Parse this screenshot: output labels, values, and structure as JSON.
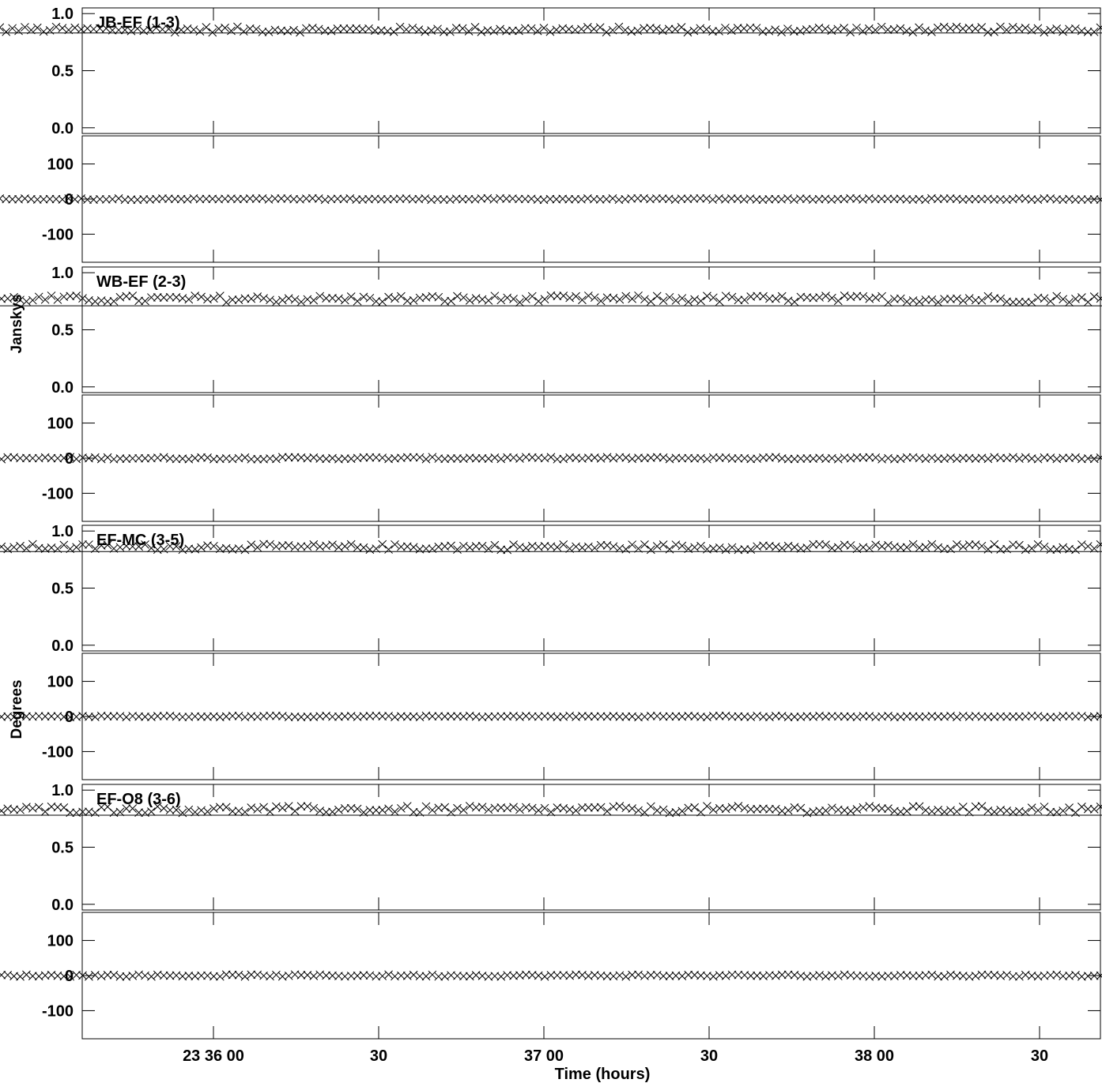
{
  "chart_data": {
    "type": "scatter",
    "xlabel": "Time (hours)",
    "ylabel_amplitude": "Janskys",
    "ylabel_phase": "Degrees",
    "x_unit": "seconds since 23:35:00",
    "xlim": [
      -83,
      1745
    ],
    "x_ticks": [
      {
        "label": "23 36 00",
        "value": 60
      },
      {
        "label": "30",
        "value": 90
      },
      {
        "label": "37 00",
        "value": 120
      },
      {
        "label": "30",
        "value": 150
      },
      {
        "label": "38 00",
        "value": 180
      },
      {
        "label": "30",
        "value": 210
      }
    ],
    "amp_ylim": [
      -0.05,
      1.05
    ],
    "amp_ticks": [
      "1.0",
      "0.5",
      "0.0"
    ],
    "phase_ylim": [
      -180,
      180
    ],
    "phase_ticks": [
      "100",
      "0",
      "-100"
    ],
    "baselines": [
      {
        "name": "JB-EF (1-3)",
        "x_start": 11.0,
        "x_end": 229.0,
        "amp_mean": 0.86,
        "amp_model": 0.83,
        "amp_scatter": 0.025,
        "phase_mean": 0,
        "phase_scatter": 2.0
      },
      {
        "name": "WB-EF (2-3)",
        "x_start": 4.5,
        "x_end": 229.0,
        "amp_mean": 0.77,
        "amp_model": 0.71,
        "amp_scatter": 0.03,
        "phase_mean": 0,
        "phase_scatter": 3.0
      },
      {
        "name": "EF-MC (3-5)",
        "x_start": 4.5,
        "x_end": 229.0,
        "amp_mean": 0.86,
        "amp_model": 0.82,
        "amp_scatter": 0.025,
        "phase_mean": 0,
        "phase_scatter": 2.0
      },
      {
        "name": "EF-O8 (3-6)",
        "x_start": 4.5,
        "x_end": 229.0,
        "amp_mean": 0.83,
        "amp_model": 0.78,
        "amp_scatter": 0.03,
        "phase_mean": 0,
        "phase_scatter": 3.0
      }
    ],
    "grid": false,
    "colors": {
      "marker": "#000000",
      "axes": "#000000",
      "background": "#ffffff"
    }
  }
}
